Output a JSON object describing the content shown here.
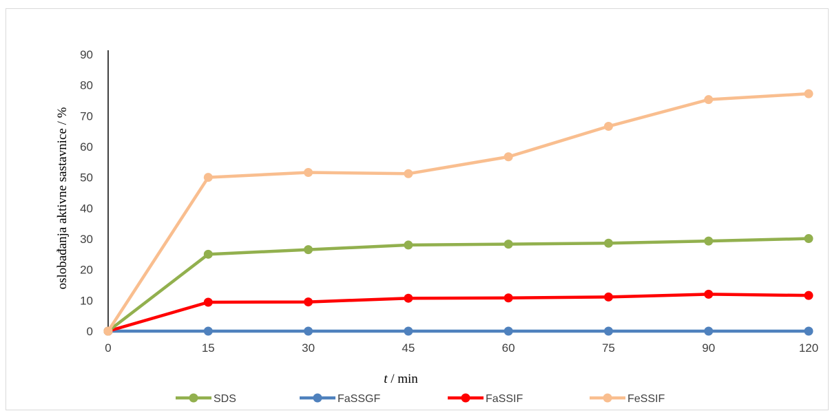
{
  "chart_data": {
    "type": "line",
    "x": [
      "0",
      "15",
      "30",
      "45",
      "60",
      "75",
      "90",
      "120"
    ],
    "xlabel_italic": "t",
    "xlabel_rest": " / min",
    "ylabel": "oslobađanja aktivne sastavnice / %",
    "ylim": [
      0,
      90
    ],
    "yticks": [
      0,
      10,
      20,
      30,
      40,
      50,
      60,
      70,
      80,
      90
    ],
    "grid": false,
    "legend_position": "bottom",
    "series": [
      {
        "name": "SDS",
        "color": "#92b04e",
        "values": [
          0,
          25.0,
          26.5,
          28.0,
          28.3,
          28.6,
          29.3,
          30.1
        ]
      },
      {
        "name": "FaSSGF",
        "color": "#4f81bd",
        "values": [
          0,
          0,
          0,
          0,
          0,
          0,
          0,
          0
        ]
      },
      {
        "name": "FaSSIF",
        "color": "#ff0000",
        "values": [
          0,
          9.4,
          9.5,
          10.7,
          10.8,
          11.1,
          12.0,
          11.6
        ]
      },
      {
        "name": "FeSSIF",
        "color": "#f9be8f",
        "values": [
          0,
          50.0,
          51.6,
          51.2,
          56.7,
          66.6,
          75.3,
          77.2
        ]
      }
    ]
  }
}
